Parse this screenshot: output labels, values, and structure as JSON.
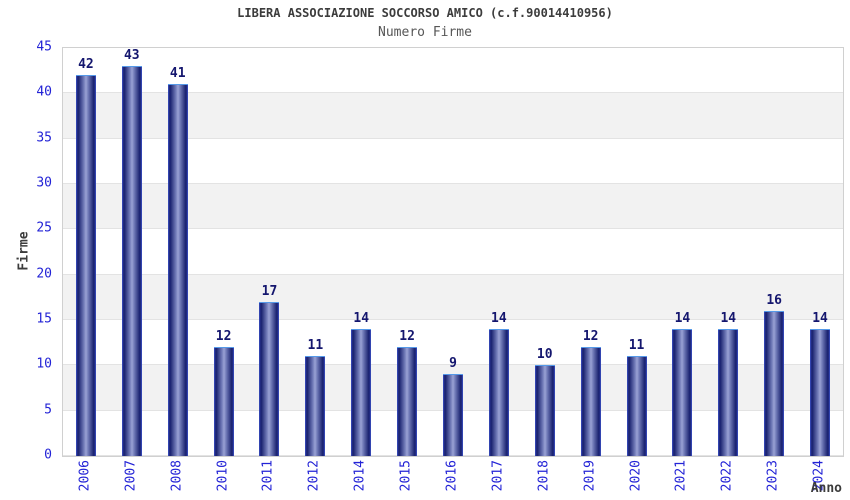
{
  "header": {
    "title": "LIBERA ASSOCIAZIONE SOCCORSO AMICO (c.f.90014410956)",
    "subtitle": "Numero Firme"
  },
  "chart_data": {
    "type": "bar",
    "title": "LIBERA ASSOCIAZIONE SOCCORSO AMICO (c.f.90014410956)",
    "subtitle": "Numero Firme",
    "categories": [
      "2006",
      "2007",
      "2008",
      "2010",
      "2011",
      "2012",
      "2014",
      "2015",
      "2016",
      "2017",
      "2018",
      "2019",
      "2020",
      "2021",
      "2022",
      "2023",
      "2024"
    ],
    "values": [
      42,
      43,
      41,
      12,
      17,
      11,
      14,
      12,
      9,
      14,
      10,
      12,
      11,
      14,
      14,
      16,
      14
    ],
    "xlabel": "Anno",
    "ylabel": "Firme",
    "ylim": [
      0,
      45
    ],
    "ytick_step": 5,
    "yticks": [
      45,
      40,
      35,
      30,
      25,
      20,
      15,
      10,
      5,
      0
    ],
    "value_labels_shown": true,
    "grid": "horizontal gridlines every 5 units with alternating white/gray bands",
    "legend": "none",
    "colors": {
      "bar_edge": "#1a2370",
      "bar_mid": "#9aa2d4",
      "bar_outline_top": "#5599e8",
      "bar_outline_side": "#3c55d0",
      "tick_label": "#2323d6",
      "value_label": "#14166e",
      "band_gray": "#f2f2f2",
      "band_white": "#ffffff",
      "plot_border": "#d0d0d0",
      "gridline": "#e3e3e3",
      "title_text": "#3c3c3c",
      "subtitle_text": "#575757",
      "axis_title_text": "#3c3c3c"
    }
  }
}
